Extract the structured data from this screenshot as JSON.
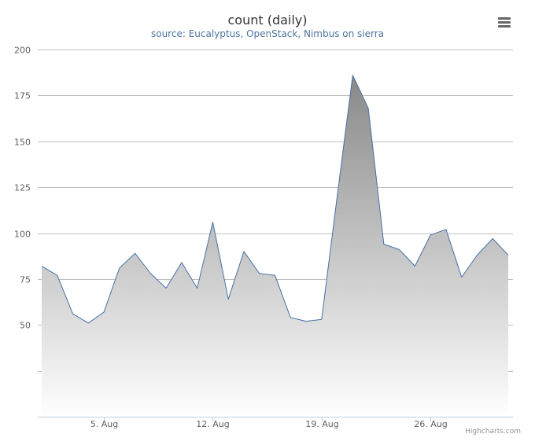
{
  "chart_data": {
    "type": "area",
    "title": "count (daily)",
    "subtitle": "source: Eucalyptus, OpenStack, Nimbus on sierra",
    "xlabel": "",
    "ylabel": "",
    "ylim": [
      0,
      200
    ],
    "y_ticks": [
      200,
      175,
      150,
      125,
      100,
      75,
      50,
      25
    ],
    "y_tick_labels": [
      "200",
      "175",
      "150",
      "125",
      "100",
      "75",
      "50",
      ""
    ],
    "x_ticks": [
      "2014-08-05",
      "2014-08-12",
      "2014-08-19",
      "2014-08-26"
    ],
    "x_tick_labels": [
      "5. Aug",
      "12. Aug",
      "19. Aug",
      "26. Aug"
    ],
    "grid": true,
    "x": [
      "2014-08-01",
      "2014-08-02",
      "2014-08-03",
      "2014-08-04",
      "2014-08-05",
      "2014-08-06",
      "2014-08-07",
      "2014-08-08",
      "2014-08-09",
      "2014-08-10",
      "2014-08-11",
      "2014-08-12",
      "2014-08-13",
      "2014-08-14",
      "2014-08-15",
      "2014-08-16",
      "2014-08-17",
      "2014-08-18",
      "2014-08-19",
      "2014-08-20",
      "2014-08-21",
      "2014-08-22",
      "2014-08-23",
      "2014-08-24",
      "2014-08-25",
      "2014-08-26",
      "2014-08-27",
      "2014-08-28",
      "2014-08-29",
      "2014-08-30",
      "2014-08-31"
    ],
    "series": [
      {
        "values": [
          82,
          77,
          56,
          51,
          57,
          81,
          89,
          78,
          70,
          84,
          70,
          106,
          64,
          90,
          78,
          77,
          54,
          52,
          53,
          120,
          186,
          168,
          94,
          91,
          82,
          99,
          102,
          76,
          88,
          97,
          88
        ]
      }
    ],
    "line_color": "#4572a7",
    "fill_top_color": "#888888",
    "fill_bottom_color": "#ffffff"
  },
  "credits": "Highcharts.com",
  "menu": {
    "icon": "hamburger-menu-icon"
  }
}
